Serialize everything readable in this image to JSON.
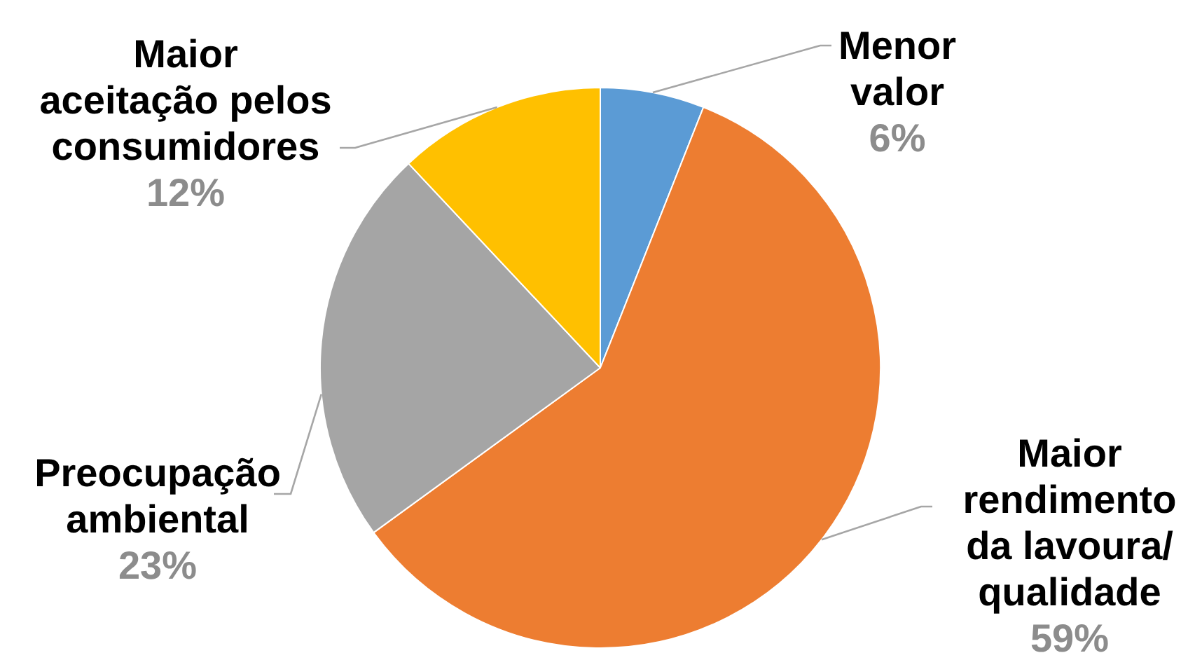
{
  "chart_data": {
    "type": "pie",
    "categories": [
      "Menor\nvalor",
      "Maior\nrendimento\nda lavoura/\nqualidade",
      "Preocupação\nambiental",
      "Maior\naceitação pelos\nconsumidores"
    ],
    "values": [
      6,
      59,
      23,
      12
    ],
    "colors": [
      "#5b9bd5",
      "#ed7d31",
      "#a5a5a5",
      "#ffc000"
    ],
    "value_labels": [
      "6%",
      "59%",
      "23%",
      "12%"
    ]
  }
}
